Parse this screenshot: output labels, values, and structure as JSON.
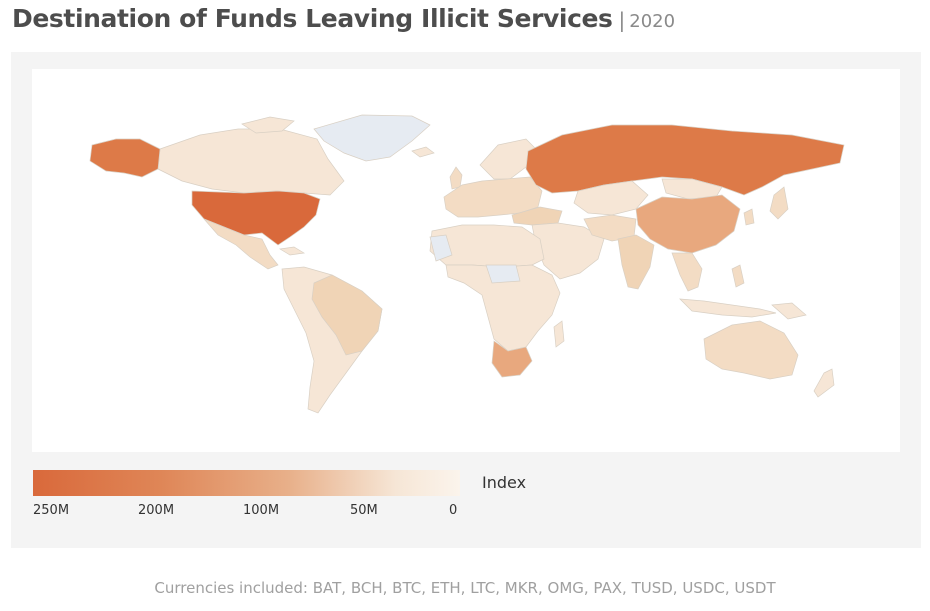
{
  "title": "Destination of Funds Leaving Illicit Services",
  "separator": "|",
  "year": "2020",
  "legend": {
    "title": "Index",
    "ticks": [
      "250M",
      "200M",
      "100M",
      "50M",
      "0"
    ],
    "colors": {
      "high": "#d9693b",
      "mid": "#e8b08a",
      "low": "#fbf4ec",
      "no_data": "#e6ebf2"
    }
  },
  "footnote": "Currencies included: BAT, BCH, BTC, ETH, LTC, MKR, OMG, PAX, TUSD, USDC, USDT",
  "map_data": {
    "highlighted_regions": [
      {
        "name": "United States",
        "level": "highest"
      },
      {
        "name": "Russia",
        "level": "high"
      },
      {
        "name": "China",
        "level": "medium"
      },
      {
        "name": "South Africa",
        "level": "medium-low"
      }
    ]
  }
}
